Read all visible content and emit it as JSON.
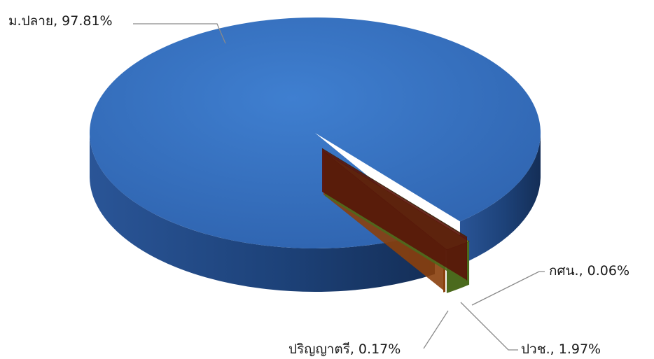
{
  "chart_data": {
    "type": "pie",
    "style": "3d",
    "slices": [
      {
        "label": "ม.ปลาย",
        "value": 97.81,
        "display": "ม.ปลาย, 97.81%",
        "color": "#3b75c4"
      },
      {
        "label": "กศน.",
        "value": 0.06,
        "display": "กศน., 0.06%",
        "color": "#7a1f14"
      },
      {
        "label": "ปวช.",
        "value": 1.97,
        "display": "ปวช., 1.97%",
        "color": "#7fa83a"
      },
      {
        "label": "ปริญญาตรี",
        "value": 0.17,
        "display": "ปริญญาตรี, 0.17%",
        "color": "#c8661a"
      }
    ],
    "legend": "none"
  }
}
